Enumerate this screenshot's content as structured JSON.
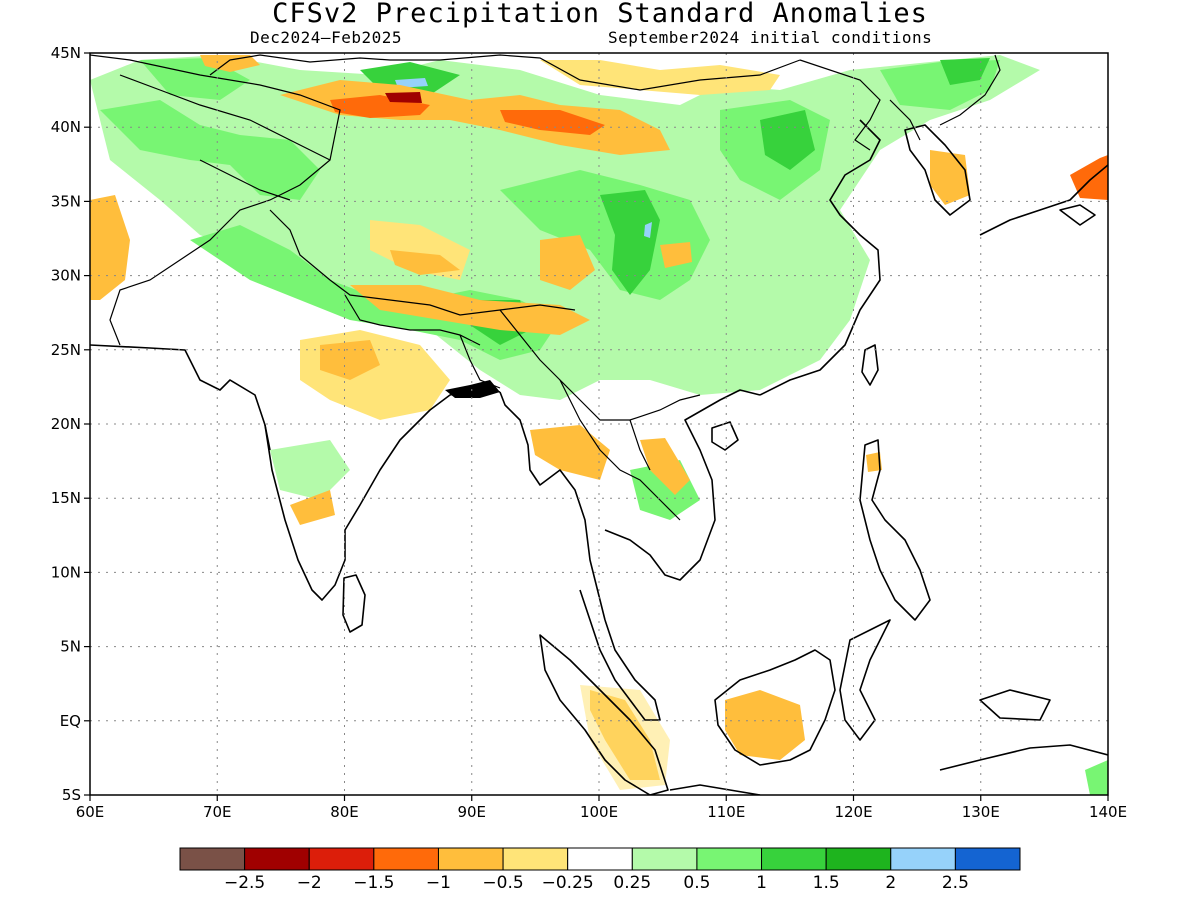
{
  "title": "CFSv2 Precipitation Standard Anomalies",
  "subtitle_left": "Dec2024–Feb2025",
  "subtitle_right": "September2024 initial conditions",
  "map": {
    "lon_range": [
      60,
      140
    ],
    "lat_range": [
      -5,
      45
    ],
    "grid": true,
    "x_ticks": [
      {
        "value": 60,
        "label": "60E"
      },
      {
        "value": 70,
        "label": "70E"
      },
      {
        "value": 80,
        "label": "80E"
      },
      {
        "value": 90,
        "label": "90E"
      },
      {
        "value": 100,
        "label": "100E"
      },
      {
        "value": 110,
        "label": "110E"
      },
      {
        "value": 120,
        "label": "120E"
      },
      {
        "value": 130,
        "label": "130E"
      },
      {
        "value": 140,
        "label": "140E"
      }
    ],
    "y_ticks": [
      {
        "value": 45,
        "label": "45N"
      },
      {
        "value": 40,
        "label": "40N"
      },
      {
        "value": 35,
        "label": "35N"
      },
      {
        "value": 30,
        "label": "30N"
      },
      {
        "value": 25,
        "label": "25N"
      },
      {
        "value": 20,
        "label": "20N"
      },
      {
        "value": 15,
        "label": "15N"
      },
      {
        "value": 10,
        "label": "10N"
      },
      {
        "value": 5,
        "label": "5N"
      },
      {
        "value": 0,
        "label": "EQ"
      },
      {
        "value": -5,
        "label": "5S"
      }
    ]
  },
  "colorbar": {
    "colors": [
      "#7a5147",
      "#a00000",
      "#dc1e0a",
      "#ff6a0a",
      "#ffbe3c",
      "#ffe478",
      "#ffffff",
      "#b4faaa",
      "#78f573",
      "#37d23c",
      "#1eb41e",
      "#96d2fa",
      "#1464d2"
    ],
    "labels": [
      "−2.5",
      "−2",
      "−1.5",
      "−1",
      "−0.5",
      "−0.25",
      "0.25",
      "0.5",
      "1",
      "1.5",
      "2",
      "2.5"
    ]
  },
  "legend_colors": {
    "dry_strong": "#dc1e0a",
    "dry_moderate": "#ff6a0a",
    "dry": "#ffbe3c",
    "dry_weak": "#ffe478",
    "wet_weak": "#b4faaa",
    "wet": "#78f573",
    "wet_moderate": "#37d23c",
    "wet_strong": "#1eb41e",
    "very_wet": "#96d2fa"
  }
}
